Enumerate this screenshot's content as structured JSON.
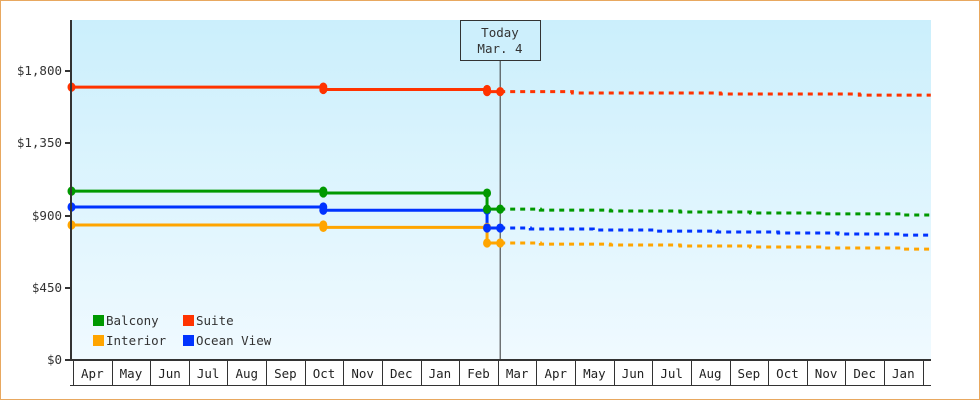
{
  "chart_data": {
    "type": "line",
    "title": "",
    "xlabel": "",
    "ylabel": "",
    "grid": false,
    "ylim": [
      0,
      2118
    ],
    "yticks": [
      0,
      450,
      900,
      1350,
      1800
    ],
    "ytick_labels": [
      "$0",
      "$450",
      "$900",
      "$1,350",
      "$1,800"
    ],
    "x_unit": "months from start of first Apr",
    "categories": [
      "Apr",
      "May",
      "Jun",
      "Jul",
      "Aug",
      "Sep",
      "Oct",
      "Nov",
      "Dec",
      "Jan",
      "Feb",
      "Mar",
      "Apr",
      "May",
      "Jun",
      "Jul",
      "Aug",
      "Sep",
      "Oct",
      "Nov",
      "Dec",
      "Jan"
    ],
    "today": {
      "line1": "Today",
      "line2": "Mar. 4",
      "x": 11.1
    },
    "legend_position": "lower-left inside plot",
    "series": [
      {
        "name": "Balcony",
        "color": "#009900",
        "history": [
          [
            0,
            1052
          ],
          [
            6.52,
            1040
          ],
          [
            10.76,
            940
          ],
          [
            11.1,
            940
          ]
        ],
        "forecast": [
          [
            11.1,
            940
          ],
          [
            12.14,
            934
          ],
          [
            13.95,
            928
          ],
          [
            15.76,
            922
          ],
          [
            17.58,
            916
          ],
          [
            19.47,
            910
          ],
          [
            21.47,
            903
          ],
          [
            22.25,
            903
          ]
        ]
      },
      {
        "name": "Suite",
        "color": "#ff3300",
        "history": [
          [
            0,
            1700
          ],
          [
            6.52,
            1685
          ],
          [
            10.76,
            1672
          ],
          [
            11.1,
            1672
          ]
        ],
        "forecast": [
          [
            11.1,
            1672
          ],
          [
            12.97,
            1663
          ],
          [
            16.8,
            1657
          ],
          [
            20.4,
            1650
          ],
          [
            22.25,
            1650
          ]
        ]
      },
      {
        "name": "Interior",
        "color": "#ffa500",
        "history": [
          [
            0,
            841
          ],
          [
            6.52,
            826
          ],
          [
            10.76,
            729
          ],
          [
            11.1,
            729
          ]
        ],
        "forecast": [
          [
            11.1,
            729
          ],
          [
            12.14,
            722
          ],
          [
            13.95,
            716
          ],
          [
            15.76,
            710
          ],
          [
            17.58,
            704
          ],
          [
            19.47,
            698
          ],
          [
            21.47,
            691
          ],
          [
            22.25,
            691
          ]
        ]
      },
      {
        "name": "Ocean View",
        "color": "#0033ff",
        "history": [
          [
            0,
            953
          ],
          [
            6.52,
            933
          ],
          [
            10.76,
            822
          ],
          [
            11.1,
            822
          ]
        ],
        "forecast": [
          [
            11.1,
            822
          ],
          [
            11.88,
            816
          ],
          [
            13.51,
            810
          ],
          [
            15.07,
            803
          ],
          [
            16.72,
            797
          ],
          [
            18.3,
            791
          ],
          [
            19.85,
            785
          ],
          [
            21.47,
            778
          ],
          [
            22.25,
            778
          ]
        ]
      }
    ]
  }
}
